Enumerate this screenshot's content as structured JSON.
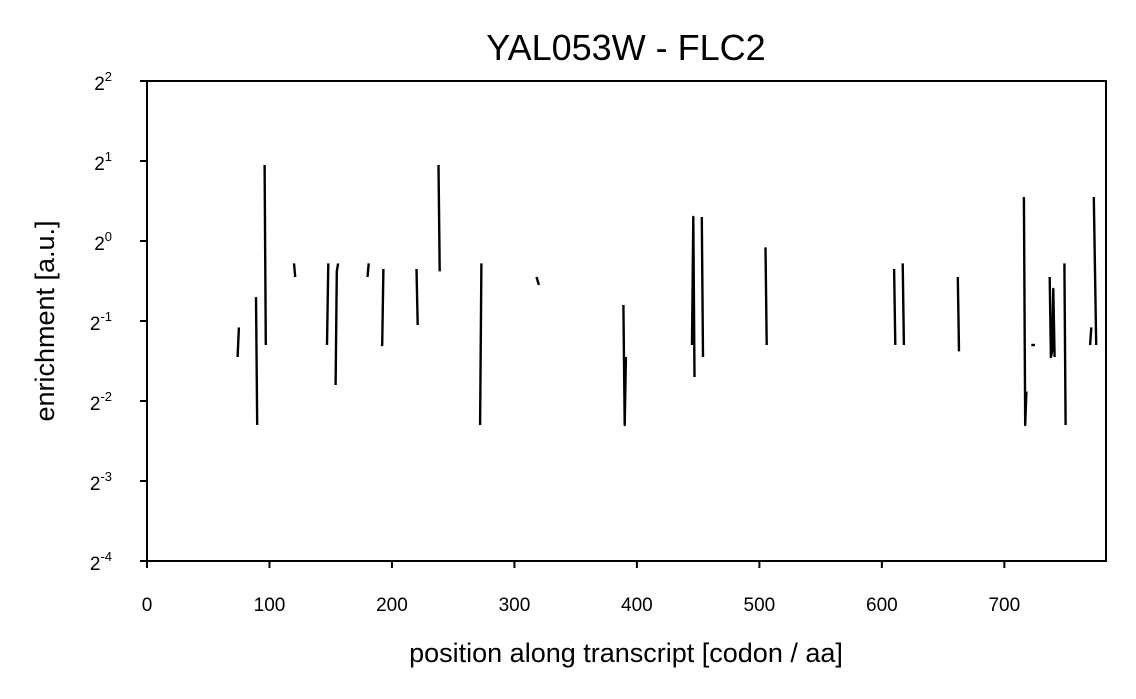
{
  "chart_data": {
    "type": "line",
    "title": "YAL053W - FLC2",
    "xlabel": "position along transcript [codon / aa]",
    "ylabel": "enrichment [a.u.]",
    "xlim": [
      0,
      783
    ],
    "ylim_log2": [
      -4,
      2
    ],
    "y_scale": "log2",
    "grid": false,
    "x_ticks": [
      {
        "value": 0,
        "label": "0"
      },
      {
        "value": 100,
        "label": "100"
      },
      {
        "value": 200,
        "label": "200"
      },
      {
        "value": 300,
        "label": "300"
      },
      {
        "value": 400,
        "label": "400"
      },
      {
        "value": 500,
        "label": "500"
      },
      {
        "value": 600,
        "label": "600"
      },
      {
        "value": 700,
        "label": "700"
      }
    ],
    "y_ticks": [
      {
        "exp": 2,
        "base": "2",
        "sup": "2"
      },
      {
        "exp": 1,
        "base": "2",
        "sup": "1"
      },
      {
        "exp": 0,
        "base": "2",
        "sup": "0"
      },
      {
        "exp": -1,
        "base": "2",
        "sup": "-1"
      },
      {
        "exp": -2,
        "base": "2",
        "sup": "-2"
      },
      {
        "exp": -3,
        "base": "2",
        "sup": "-3"
      },
      {
        "exp": -4,
        "base": "2",
        "sup": "-4"
      }
    ],
    "series": [
      {
        "segments": [
          [
            [
              74,
              -1.45
            ],
            [
              75,
              -1.08
            ]
          ],
          [
            [
              89,
              -0.7
            ],
            [
              90,
              -2.3
            ]
          ],
          [
            [
              96,
              0.95
            ],
            [
              97,
              -1.3
            ]
          ],
          [
            [
              120,
              -0.28
            ],
            [
              121,
              -0.45
            ]
          ],
          [
            [
              147,
              -1.3
            ],
            [
              148,
              -0.28
            ]
          ],
          [
            [
              154,
              -1.8
            ],
            [
              155,
              -0.38
            ],
            [
              156,
              -0.28
            ]
          ],
          [
            [
              180,
              -0.45
            ],
            [
              181,
              -0.28
            ]
          ],
          [
            [
              191,
              -1.3
            ],
            [
              192,
              -1.3
            ],
            [
              193,
              -0.35
            ]
          ],
          [
            [
              220,
              -0.35
            ],
            [
              221,
              -1.05
            ]
          ],
          [
            [
              238,
              0.95
            ],
            [
              239,
              -0.38
            ]
          ],
          [
            [
              272,
              -2.3
            ],
            [
              273,
              -0.28
            ]
          ],
          [
            [
              318,
              -0.45
            ],
            [
              320,
              -0.55
            ]
          ],
          [
            [
              389,
              -0.8
            ],
            [
              390,
              -2.3
            ],
            [
              391,
              -1.45
            ]
          ],
          [
            [
              445,
              -1.3
            ],
            [
              446,
              0.3
            ],
            [
              447,
              -1.7
            ]
          ],
          [
            [
              453,
              0.3
            ],
            [
              454,
              -1.45
            ]
          ],
          [
            [
              505,
              -0.08
            ],
            [
              506,
              -1.3
            ]
          ],
          [
            [
              610,
              -0.35
            ],
            [
              611,
              -1.3
            ]
          ],
          [
            [
              617,
              -0.28
            ],
            [
              618,
              -1.3
            ]
          ],
          [
            [
              662,
              -0.45
            ],
            [
              663,
              -1.38
            ]
          ],
          [
            [
              716,
              0.55
            ],
            [
              717,
              -2.3
            ],
            [
              718,
              -1.88
            ]
          ],
          [
            [
              722,
              -1.3
            ],
            [
              725,
              -1.3
            ]
          ],
          [
            [
              737,
              -0.45
            ],
            [
              738,
              -1.45
            ],
            [
              739,
              -1.38
            ],
            [
              740,
              -0.6
            ],
            [
              741,
              -1.45
            ]
          ],
          [
            [
              749,
              -0.28
            ],
            [
              750,
              -2.3
            ]
          ],
          [
            [
              770,
              -1.3
            ],
            [
              771,
              -1.08
            ]
          ],
          [
            [
              773,
              0.55
            ],
            [
              775,
              -1.3
            ]
          ]
        ]
      }
    ]
  }
}
